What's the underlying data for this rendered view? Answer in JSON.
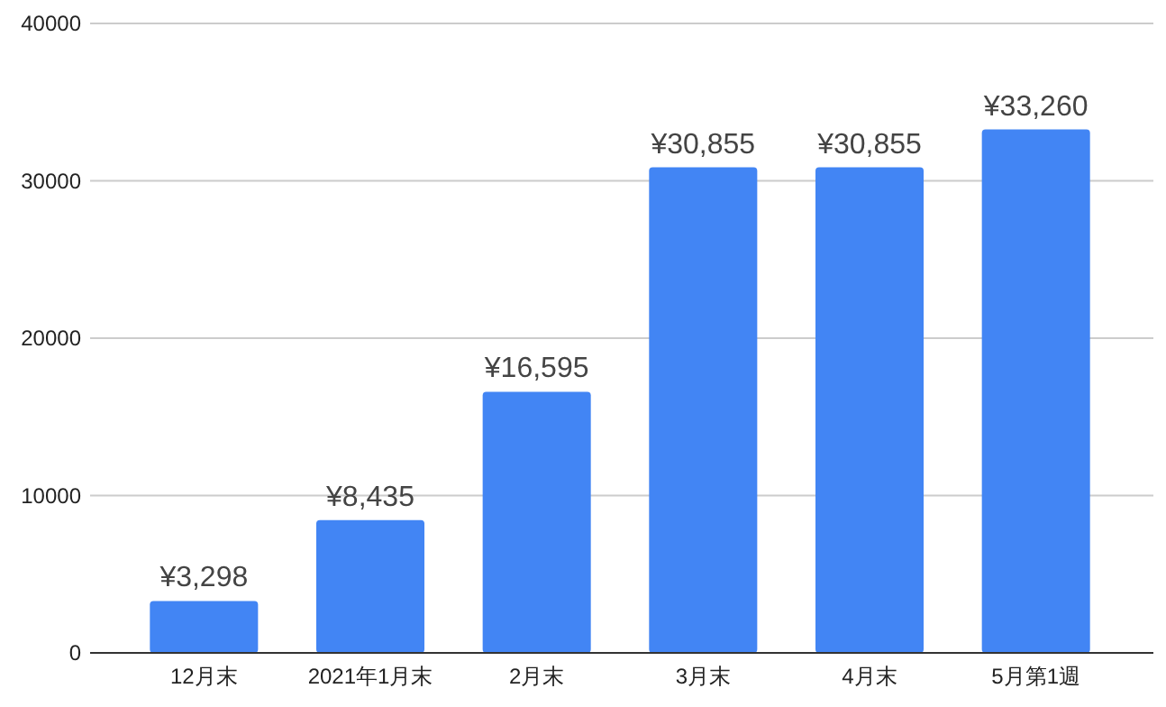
{
  "chart_data": {
    "type": "bar",
    "categories": [
      "12月末",
      "2021年1月末",
      "2月末",
      "3月末",
      "4月末",
      "5月第1週"
    ],
    "values": [
      3298,
      8435,
      16595,
      30855,
      30855,
      33260
    ],
    "value_labels": [
      "¥3,298",
      "¥8,435",
      "¥16,595",
      "¥30,855",
      "¥30,855",
      "¥33,260"
    ],
    "color": "#4285f4",
    "ylim": [
      0,
      40000
    ],
    "yticks": [
      0,
      10000,
      20000,
      30000,
      40000
    ],
    "grid": true
  }
}
